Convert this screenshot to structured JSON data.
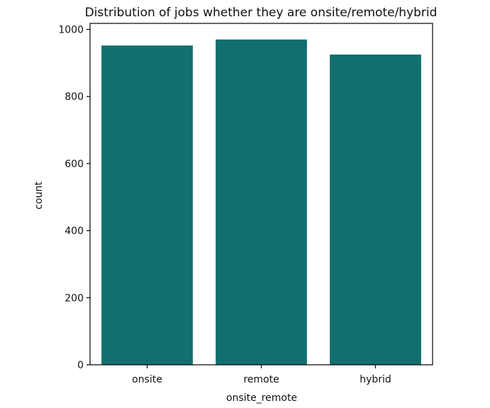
{
  "chart_data": {
    "type": "bar",
    "title": "Distribution of jobs whether they are onsite/remote/hybrid",
    "xlabel": "onsite_remote",
    "ylabel": "count",
    "categories": [
      "onsite",
      "remote",
      "hybrid"
    ],
    "values": [
      952,
      970,
      925
    ],
    "ylim": [
      0,
      1018
    ],
    "yticks": [
      0,
      200,
      400,
      600,
      800,
      1000
    ],
    "bar_color": "#11706e",
    "grid": false,
    "legend": "none"
  }
}
